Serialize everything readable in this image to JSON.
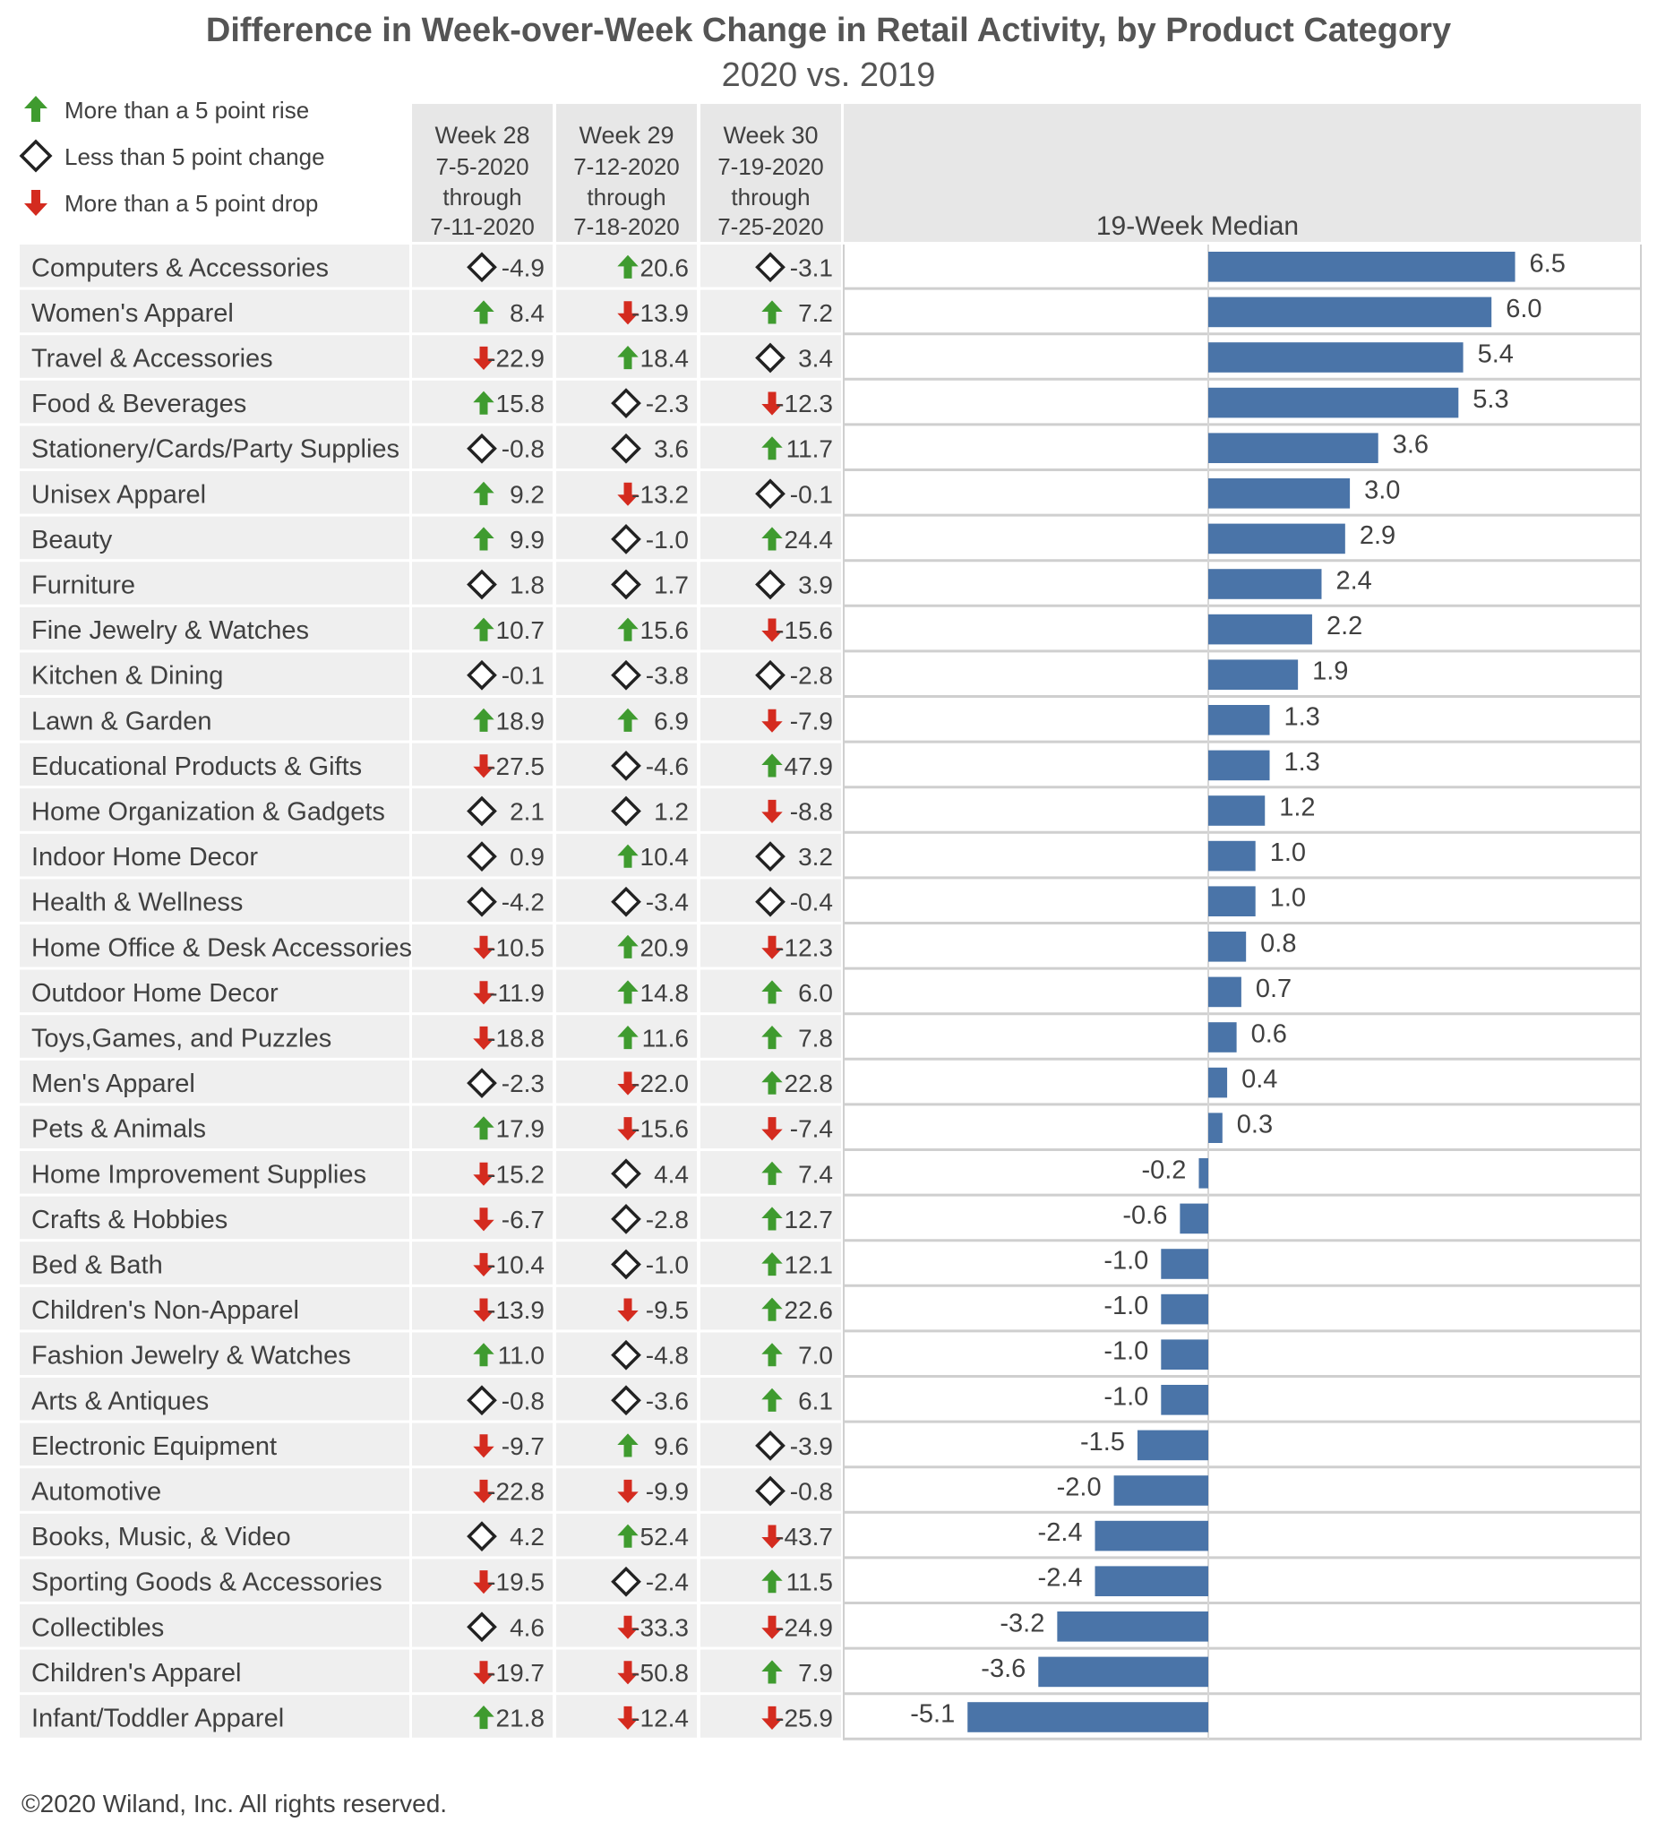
{
  "title": "Difference in Week-over-Week Change in Retail Activity, by Product Category",
  "subtitle": "2020 vs. 2019",
  "legend": [
    {
      "kind": "up",
      "label": "More than a 5 point rise"
    },
    {
      "kind": "flat",
      "label": "Less than 5 point change"
    },
    {
      "kind": "down",
      "label": "More than a 5 point drop"
    }
  ],
  "columns": [
    {
      "week": "Week 28",
      "start": "7-5-2020",
      "through": "through",
      "end": "7-11-2020"
    },
    {
      "week": "Week 29",
      "start": "7-12-2020",
      "through": "through",
      "end": "7-18-2020"
    },
    {
      "week": "Week 30",
      "start": "7-19-2020",
      "through": "through",
      "end": "7-25-2020"
    }
  ],
  "median_header": "19-Week Median",
  "footer": "©2020 Wiland, Inc. All rights reserved.",
  "colors": {
    "bar": "#4a74a8",
    "up": "#3f9b2f",
    "down": "#d42b1f",
    "flat": "#222222",
    "header_bg": "#e7e7e7",
    "row_bg": "#efefef",
    "text": "#404040"
  },
  "chart_data": {
    "type": "bar",
    "orientation": "horizontal",
    "title": "Difference in Week-over-Week Change in Retail Activity, by Product Category",
    "subtitle": "2020 vs. 2019",
    "value_label": "19-Week Median",
    "xlim": [
      -5.1,
      6.5
    ],
    "categories": [
      "Computers & Accessories",
      "Women's Apparel",
      "Travel & Accessories",
      "Food & Beverages",
      "Stationery/Cards/Party Supplies",
      "Unisex Apparel",
      "Beauty",
      "Furniture",
      "Fine Jewelry & Watches",
      "Kitchen & Dining",
      "Lawn & Garden",
      "Educational Products & Gifts",
      "Home Organization & Gadgets",
      "Indoor Home Decor",
      "Health & Wellness",
      "Home Office & Desk Accessories",
      "Outdoor Home Decor",
      "Toys,Games, and Puzzles",
      "Men's Apparel",
      "Pets & Animals",
      "Home Improvement Supplies",
      "Crafts & Hobbies",
      "Bed & Bath",
      "Children's Non-Apparel",
      "Fashion Jewelry & Watches",
      "Arts & Antiques",
      "Electronic Equipment",
      "Automotive",
      "Books, Music, & Video",
      "Sporting Goods & Accessories",
      "Collectibles",
      "Children's Apparel",
      "Infant/Toddler Apparel"
    ],
    "week28": [
      -4.9,
      8.4,
      -22.9,
      15.8,
      -0.8,
      9.2,
      9.9,
      1.8,
      10.7,
      -0.1,
      18.9,
      -27.5,
      2.1,
      0.9,
      -4.2,
      -10.5,
      -11.9,
      -18.8,
      -2.3,
      17.9,
      -15.2,
      -6.7,
      -10.4,
      -13.9,
      11.0,
      -0.8,
      -9.7,
      -22.8,
      4.2,
      -19.5,
      4.6,
      -19.7,
      21.8
    ],
    "week29": [
      20.6,
      -13.9,
      18.4,
      -2.3,
      3.6,
      -13.2,
      -1.0,
      1.7,
      15.6,
      -3.8,
      6.9,
      -4.6,
      1.2,
      10.4,
      -3.4,
      20.9,
      14.8,
      11.6,
      -22.0,
      -15.6,
      4.4,
      -2.8,
      -1.0,
      -9.5,
      -4.8,
      -3.6,
      9.6,
      -9.9,
      52.4,
      -2.4,
      -33.3,
      -50.8,
      -12.4
    ],
    "week30": [
      -3.1,
      7.2,
      3.4,
      -12.3,
      11.7,
      -0.1,
      24.4,
      3.9,
      -15.6,
      -2.8,
      -7.9,
      47.9,
      -8.8,
      3.2,
      -0.4,
      -12.3,
      6.0,
      7.8,
      22.8,
      -7.4,
      7.4,
      12.7,
      12.1,
      22.6,
      7.0,
      6.1,
      -3.9,
      -0.8,
      -43.7,
      11.5,
      -24.9,
      7.9,
      -25.9
    ],
    "values": [
      6.5,
      6.0,
      5.4,
      5.3,
      3.6,
      3.0,
      2.9,
      2.4,
      2.2,
      1.9,
      1.3,
      1.3,
      1.2,
      1.0,
      1.0,
      0.8,
      0.7,
      0.6,
      0.4,
      0.3,
      -0.2,
      -0.6,
      -1.0,
      -1.0,
      -1.0,
      -1.0,
      -1.5,
      -2.0,
      -2.4,
      -2.4,
      -3.2,
      -3.6,
      -5.1
    ],
    "value_labels": [
      "6.5",
      "6.0",
      "5.4",
      "5.3",
      "3.6",
      "3.0",
      "2.9",
      "2.4",
      "2.2",
      "1.9",
      "1.3",
      "1.3",
      "1.2",
      "1.0",
      "1.0",
      "0.8",
      "0.7",
      "0.6",
      "0.4",
      "0.3",
      "-0.2",
      "-0.6",
      "-1.0",
      "-1.0",
      "-1.0",
      "-1.0",
      "-1.5",
      "-2.0",
      "-2.4",
      "-2.4",
      "-3.2",
      "-3.6",
      "-5.1"
    ],
    "week28_labels": [
      "-4.9",
      "8.4",
      "-22.9",
      "15.8",
      "-0.8",
      "9.2",
      "9.9",
      "1.8",
      "10.7",
      "-0.1",
      "18.9",
      "-27.5",
      "2.1",
      "0.9",
      "-4.2",
      "-10.5",
      "-11.9",
      "-18.8",
      "-2.3",
      "17.9",
      "-15.2",
      "-6.7",
      "-10.4",
      "-13.9",
      "11.0",
      "-0.8",
      "-9.7",
      "-22.8",
      "4.2",
      "-19.5",
      "4.6",
      "-19.7",
      "21.8"
    ],
    "week29_labels": [
      "20.6",
      "-13.9",
      "18.4",
      "-2.3",
      "3.6",
      "-13.2",
      "-1.0",
      "1.7",
      "15.6",
      "-3.8",
      "6.9",
      "-4.6",
      "1.2",
      "10.4",
      "-3.4",
      "20.9",
      "14.8",
      "11.6",
      "-22.0",
      "-15.6",
      "4.4",
      "-2.8",
      "-1.0",
      "-9.5",
      "-4.8",
      "-3.6",
      "9.6",
      "-9.9",
      "52.4",
      "-2.4",
      "-33.3",
      "-50.8",
      "-12.4"
    ],
    "week30_labels": [
      "-3.1",
      "7.2",
      "3.4",
      "-12.3",
      "11.7",
      "-0.1",
      "24.4",
      "3.9",
      "-15.6",
      "-2.8",
      "-7.9",
      "47.9",
      "-8.8",
      "3.2",
      "-0.4",
      "-12.3",
      "6.0",
      "7.8",
      "22.8",
      "-7.4",
      "7.4",
      "12.7",
      "12.1",
      "22.6",
      "7.0",
      "6.1",
      "-3.9",
      "-0.8",
      "-43.7",
      "11.5",
      "-24.9",
      "7.9",
      "-25.9"
    ]
  }
}
